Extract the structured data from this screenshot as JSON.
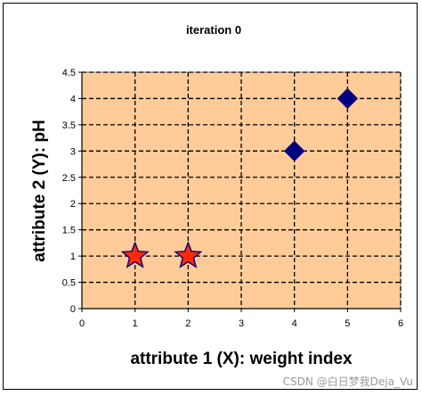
{
  "chart_data": {
    "type": "scatter",
    "title": "iteration 0",
    "xlabel": "attribute 1 (X): weight index",
    "ylabel": "attribute 2 (Y): pH",
    "xlim": [
      0,
      6
    ],
    "ylim": [
      0,
      4.5
    ],
    "x_ticks": [
      "0",
      "1",
      "2",
      "3",
      "4",
      "5",
      "6"
    ],
    "y_ticks": [
      "0",
      "0.5",
      "1",
      "1.5",
      "2",
      "2.5",
      "3",
      "3.5",
      "4",
      "4.5"
    ],
    "grid": true,
    "grid_style": "dashed",
    "legend": "none",
    "series": [
      {
        "marker": "star",
        "color": "#ff2a00",
        "edge_color": "#000080",
        "points": [
          {
            "x": 1,
            "y": 1
          },
          {
            "x": 2,
            "y": 1
          }
        ]
      },
      {
        "marker": "diamond",
        "color": "#000080",
        "points": [
          {
            "x": 4,
            "y": 3
          },
          {
            "x": 5,
            "y": 4
          }
        ]
      }
    ]
  },
  "colors": {
    "plot_background": "#ffcc99",
    "grid": "#000000"
  },
  "watermark": "CSDN @白日梦我Deja_Vu"
}
